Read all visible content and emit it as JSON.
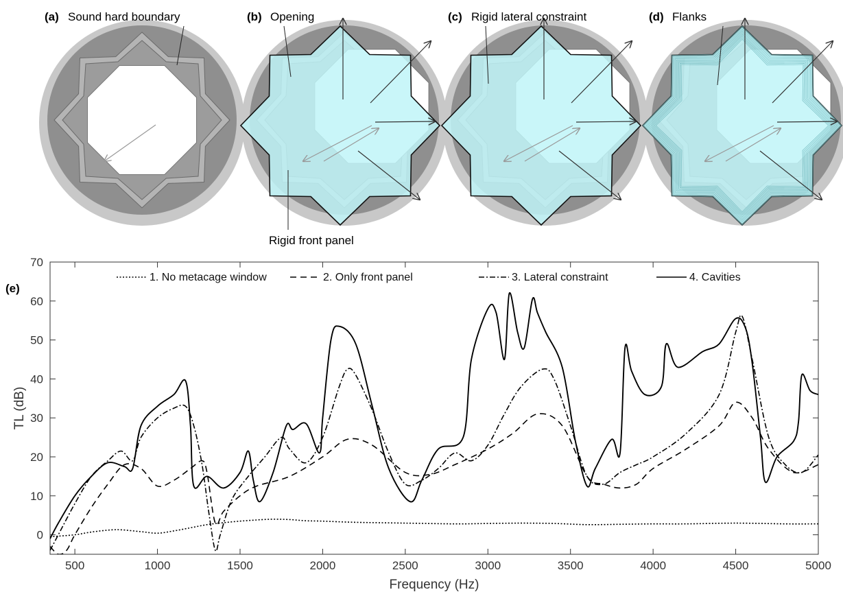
{
  "panels": [
    {
      "tag": "(a)",
      "label": "Sound hard boundary",
      "window": "none"
    },
    {
      "tag": "(b)",
      "label": "Opening",
      "label2": "Rigid front panel",
      "window": "front"
    },
    {
      "tag": "(c)",
      "label": "Rigid lateral constraint",
      "window": "lateral"
    },
    {
      "tag": "(d)",
      "label": "Flanks",
      "window": "cavities"
    }
  ],
  "colors": {
    "shell_outer": "#c8c8c8",
    "shell_inner": "#8f8f8f",
    "frame": "#b4b4b4",
    "window_fill": "#bff5f8",
    "window_stroke": "#111111"
  },
  "chart_data": {
    "type": "line",
    "panel_tag": "(e)",
    "xlabel": "Frequency (Hz)",
    "ylabel": "TL (dB)",
    "xlim": [
      350,
      5000
    ],
    "ylim": [
      -5,
      70
    ],
    "xticks": [
      500,
      1000,
      1500,
      2000,
      2500,
      3000,
      3500,
      4000,
      4500,
      5000
    ],
    "yticks": [
      0,
      10,
      20,
      30,
      40,
      50,
      60,
      70
    ],
    "grid": false,
    "legend_position": "top",
    "series": [
      {
        "name": "1. No metacage window",
        "style": "dotted",
        "points": [
          [
            350,
            -0.5
          ],
          [
            500,
            0
          ],
          [
            600,
            0.7
          ],
          [
            750,
            1.3
          ],
          [
            900,
            0.8
          ],
          [
            1000,
            0.4
          ],
          [
            1100,
            1.0
          ],
          [
            1200,
            1.8
          ],
          [
            1300,
            2.6
          ],
          [
            1400,
            3.1
          ],
          [
            1500,
            3.5
          ],
          [
            1600,
            3.8
          ],
          [
            1700,
            4.0
          ],
          [
            1800,
            3.9
          ],
          [
            1900,
            3.6
          ],
          [
            2000,
            3.5
          ],
          [
            2200,
            3.2
          ],
          [
            2500,
            3.0
          ],
          [
            2800,
            2.8
          ],
          [
            3000,
            2.9
          ],
          [
            3200,
            3.0
          ],
          [
            3400,
            2.9
          ],
          [
            3600,
            2.6
          ],
          [
            3800,
            2.7
          ],
          [
            4000,
            2.8
          ],
          [
            4200,
            2.8
          ],
          [
            4500,
            3.0
          ],
          [
            4800,
            2.8
          ],
          [
            5000,
            2.8
          ]
        ]
      },
      {
        "name": "2. Only front panel",
        "style": "dashed",
        "points": [
          [
            350,
            -3
          ],
          [
            400,
            -5
          ],
          [
            450,
            -4
          ],
          [
            500,
            0
          ],
          [
            600,
            7
          ],
          [
            700,
            13
          ],
          [
            800,
            18
          ],
          [
            900,
            17
          ],
          [
            1000,
            12.5
          ],
          [
            1100,
            14
          ],
          [
            1200,
            17
          ],
          [
            1270,
            19
          ],
          [
            1300,
            16
          ],
          [
            1350,
            3
          ],
          [
            1400,
            6
          ],
          [
            1500,
            10
          ],
          [
            1600,
            12.5
          ],
          [
            1800,
            15
          ],
          [
            2000,
            20
          ],
          [
            2150,
            24.5
          ],
          [
            2300,
            23
          ],
          [
            2500,
            16
          ],
          [
            2650,
            15.5
          ],
          [
            2800,
            18
          ],
          [
            3000,
            22
          ],
          [
            3150,
            26
          ],
          [
            3300,
            31
          ],
          [
            3450,
            28
          ],
          [
            3600,
            15
          ],
          [
            3700,
            13
          ],
          [
            3800,
            12
          ],
          [
            3900,
            13
          ],
          [
            4000,
            17
          ],
          [
            4200,
            22
          ],
          [
            4400,
            28
          ],
          [
            4500,
            34
          ],
          [
            4600,
            30
          ],
          [
            4700,
            22
          ],
          [
            4850,
            16
          ],
          [
            5000,
            18
          ]
        ]
      },
      {
        "name": "3. Lateral constraint",
        "style": "dashdot",
        "points": [
          [
            350,
            -4
          ],
          [
            400,
            0
          ],
          [
            500,
            8
          ],
          [
            600,
            15
          ],
          [
            700,
            19
          ],
          [
            780,
            21.5
          ],
          [
            850,
            19
          ],
          [
            900,
            25
          ],
          [
            1000,
            30
          ],
          [
            1100,
            32.5
          ],
          [
            1170,
            33
          ],
          [
            1220,
            28
          ],
          [
            1270,
            18
          ],
          [
            1310,
            6
          ],
          [
            1350,
            -4
          ],
          [
            1380,
            0
          ],
          [
            1450,
            9
          ],
          [
            1550,
            15
          ],
          [
            1650,
            20
          ],
          [
            1750,
            25
          ],
          [
            1800,
            22
          ],
          [
            1900,
            18.5
          ],
          [
            2000,
            25
          ],
          [
            2100,
            38
          ],
          [
            2150,
            42.5
          ],
          [
            2200,
            41
          ],
          [
            2300,
            32
          ],
          [
            2400,
            21
          ],
          [
            2500,
            13
          ],
          [
            2600,
            14
          ],
          [
            2700,
            17
          ],
          [
            2800,
            21
          ],
          [
            2900,
            19
          ],
          [
            3000,
            23
          ],
          [
            3100,
            31
          ],
          [
            3200,
            38
          ],
          [
            3330,
            42.5
          ],
          [
            3400,
            40
          ],
          [
            3500,
            28
          ],
          [
            3600,
            15
          ],
          [
            3700,
            13
          ],
          [
            3800,
            16
          ],
          [
            3900,
            18
          ],
          [
            4000,
            20
          ],
          [
            4200,
            26
          ],
          [
            4400,
            36
          ],
          [
            4500,
            52
          ],
          [
            4540,
            56
          ],
          [
            4600,
            45
          ],
          [
            4700,
            25
          ],
          [
            4800,
            18
          ],
          [
            4900,
            16
          ],
          [
            5000,
            20.5
          ]
        ]
      },
      {
        "name": "4. Cavities",
        "style": "solid",
        "points": [
          [
            350,
            -1
          ],
          [
            400,
            3
          ],
          [
            500,
            10
          ],
          [
            600,
            15
          ],
          [
            700,
            18.5
          ],
          [
            800,
            17.5
          ],
          [
            850,
            17
          ],
          [
            900,
            28
          ],
          [
            1000,
            33
          ],
          [
            1100,
            36
          ],
          [
            1170,
            39.5
          ],
          [
            1200,
            28
          ],
          [
            1220,
            12.5
          ],
          [
            1300,
            15
          ],
          [
            1400,
            12
          ],
          [
            1500,
            16
          ],
          [
            1550,
            21.5
          ],
          [
            1580,
            14
          ],
          [
            1620,
            8.5
          ],
          [
            1700,
            16
          ],
          [
            1780,
            28
          ],
          [
            1820,
            27
          ],
          [
            1900,
            28.5
          ],
          [
            1980,
            21
          ],
          [
            2000,
            30
          ],
          [
            2050,
            50
          ],
          [
            2100,
            53.5
          ],
          [
            2200,
            49
          ],
          [
            2300,
            33
          ],
          [
            2400,
            17
          ],
          [
            2530,
            8.5
          ],
          [
            2600,
            14
          ],
          [
            2700,
            22
          ],
          [
            2850,
            25
          ],
          [
            2900,
            45
          ],
          [
            3000,
            58
          ],
          [
            3050,
            57
          ],
          [
            3100,
            45
          ],
          [
            3130,
            62
          ],
          [
            3180,
            52
          ],
          [
            3220,
            48
          ],
          [
            3270,
            60.5
          ],
          [
            3300,
            57
          ],
          [
            3350,
            52
          ],
          [
            3450,
            43
          ],
          [
            3530,
            24
          ],
          [
            3600,
            12.5
          ],
          [
            3650,
            17
          ],
          [
            3750,
            24.5
          ],
          [
            3800,
            21
          ],
          [
            3830,
            48
          ],
          [
            3870,
            42
          ],
          [
            3950,
            36
          ],
          [
            4050,
            38
          ],
          [
            4080,
            49
          ],
          [
            4150,
            43
          ],
          [
            4300,
            47
          ],
          [
            4400,
            49
          ],
          [
            4500,
            55.5
          ],
          [
            4560,
            53
          ],
          [
            4600,
            44
          ],
          [
            4650,
            25
          ],
          [
            4680,
            13.5
          ],
          [
            4750,
            20
          ],
          [
            4850,
            24
          ],
          [
            4880,
            29
          ],
          [
            4900,
            41
          ],
          [
            4950,
            37
          ],
          [
            5000,
            36
          ]
        ]
      }
    ]
  }
}
